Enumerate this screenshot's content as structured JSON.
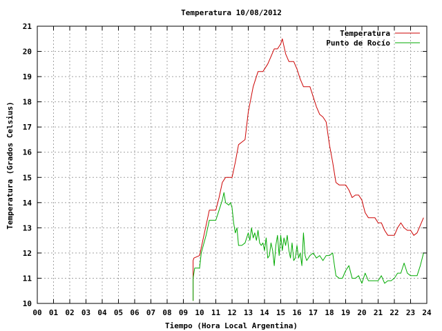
{
  "chart_data": {
    "type": "line",
    "title": "Temperatura 10/08/2012",
    "xlabel": "Tiempo (Hora Local Argentina)",
    "ylabel": "Temperatura (Grados Celsius)",
    "xlim": [
      0,
      24
    ],
    "ylim": [
      10,
      21
    ],
    "x_tick_labels": [
      "00",
      "01",
      "02",
      "03",
      "04",
      "05",
      "06",
      "07",
      "08",
      "09",
      "10",
      "11",
      "12",
      "13",
      "14",
      "15",
      "16",
      "17",
      "18",
      "19",
      "20",
      "21",
      "22",
      "23",
      "24"
    ],
    "y_tick_labels": [
      "10",
      "11",
      "12",
      "13",
      "14",
      "15",
      "16",
      "17",
      "18",
      "19",
      "20",
      "21"
    ],
    "grid": true,
    "legend_position": "top-right",
    "series": [
      {
        "name": "Temperatura",
        "color": "#cc0000",
        "x": [
          9.6,
          9.6,
          9.65,
          10.0,
          10.2,
          10.4,
          10.5,
          10.6,
          10.8,
          11.0,
          11.2,
          11.4,
          11.6,
          11.8,
          12.0,
          12.2,
          12.4,
          12.6,
          12.8,
          13.0,
          13.3,
          13.6,
          13.9,
          14.2,
          14.4,
          14.6,
          14.8,
          15.0,
          15.1,
          15.2,
          15.3,
          15.5,
          15.8,
          16.0,
          16.2,
          16.4,
          16.6,
          16.8,
          17.0,
          17.2,
          17.4,
          17.6,
          17.8,
          18.0,
          18.2,
          18.4,
          18.6,
          18.8,
          19.0,
          19.2,
          19.4,
          19.6,
          19.8,
          20.0,
          20.2,
          20.4,
          20.6,
          20.8,
          21.0,
          21.2,
          21.4,
          21.6,
          21.8,
          22.0,
          22.2,
          22.4,
          22.6,
          22.8,
          23.0,
          23.2,
          23.4,
          23.6,
          23.8
        ],
        "y": [
          10.1,
          11.7,
          11.8,
          11.9,
          12.5,
          13.1,
          13.4,
          13.7,
          13.7,
          13.7,
          14.2,
          14.8,
          15.0,
          15.0,
          15.0,
          15.6,
          16.3,
          16.4,
          16.5,
          17.6,
          18.6,
          19.2,
          19.2,
          19.5,
          19.8,
          20.1,
          20.1,
          20.3,
          20.5,
          20.2,
          19.9,
          19.6,
          19.6,
          19.3,
          18.9,
          18.6,
          18.6,
          18.6,
          18.2,
          17.8,
          17.5,
          17.4,
          17.2,
          16.3,
          15.6,
          14.8,
          14.7,
          14.7,
          14.7,
          14.5,
          14.2,
          14.3,
          14.3,
          14.1,
          13.6,
          13.4,
          13.4,
          13.4,
          13.2,
          13.2,
          12.9,
          12.7,
          12.7,
          12.7,
          13.0,
          13.2,
          13.0,
          12.9,
          12.9,
          12.7,
          12.8,
          13.1,
          13.4
        ]
      },
      {
        "name": "Punto de Rocío",
        "color": "#00aa00",
        "x": [
          9.6,
          9.6,
          9.7,
          9.9,
          10.0,
          10.1,
          10.4,
          10.6,
          10.8,
          11.0,
          11.2,
          11.4,
          11.5,
          11.6,
          11.8,
          11.9,
          12.0,
          12.1,
          12.2,
          12.3,
          12.4,
          12.6,
          12.8,
          13.0,
          13.1,
          13.2,
          13.3,
          13.4,
          13.5,
          13.6,
          13.7,
          13.8,
          13.9,
          14.0,
          14.1,
          14.2,
          14.3,
          14.4,
          14.5,
          14.6,
          14.7,
          14.8,
          14.9,
          15.0,
          15.1,
          15.2,
          15.3,
          15.4,
          15.5,
          15.6,
          15.7,
          15.8,
          15.9,
          16.0,
          16.1,
          16.2,
          16.3,
          16.4,
          16.5,
          16.6,
          16.8,
          17.0,
          17.2,
          17.4,
          17.6,
          17.8,
          18.0,
          18.2,
          18.4,
          18.6,
          18.8,
          19.0,
          19.2,
          19.4,
          19.6,
          19.8,
          20.0,
          20.2,
          20.4,
          20.6,
          20.8,
          21.0,
          21.2,
          21.4,
          21.6,
          21.8,
          22.0,
          22.2,
          22.4,
          22.6,
          22.8,
          23.0,
          23.2,
          23.4,
          23.6,
          23.8
        ],
        "y": [
          10.1,
          11.0,
          11.4,
          11.4,
          11.4,
          12.0,
          12.7,
          13.3,
          13.3,
          13.3,
          13.7,
          14.1,
          14.4,
          14.0,
          13.9,
          14.0,
          13.8,
          13.2,
          12.8,
          13.0,
          12.3,
          12.3,
          12.4,
          12.8,
          12.5,
          13.0,
          12.6,
          12.8,
          12.5,
          12.9,
          12.4,
          12.3,
          12.4,
          12.1,
          12.6,
          11.8,
          11.9,
          12.4,
          12.1,
          11.5,
          12.3,
          12.7,
          11.9,
          12.7,
          12.1,
          12.6,
          12.3,
          12.7,
          12.1,
          11.8,
          12.4,
          11.7,
          11.8,
          12.3,
          11.8,
          12.0,
          11.5,
          12.8,
          11.9,
          11.7,
          11.9,
          12.0,
          11.8,
          11.9,
          11.7,
          11.9,
          11.9,
          12.0,
          11.1,
          11.0,
          11.0,
          11.3,
          11.5,
          11.0,
          11.0,
          11.1,
          10.8,
          11.2,
          10.9,
          10.9,
          10.9,
          10.9,
          11.1,
          10.8,
          10.9,
          10.9,
          11.0,
          11.2,
          11.2,
          11.6,
          11.2,
          11.1,
          11.1,
          11.1,
          11.5,
          12.0
        ]
      }
    ]
  }
}
